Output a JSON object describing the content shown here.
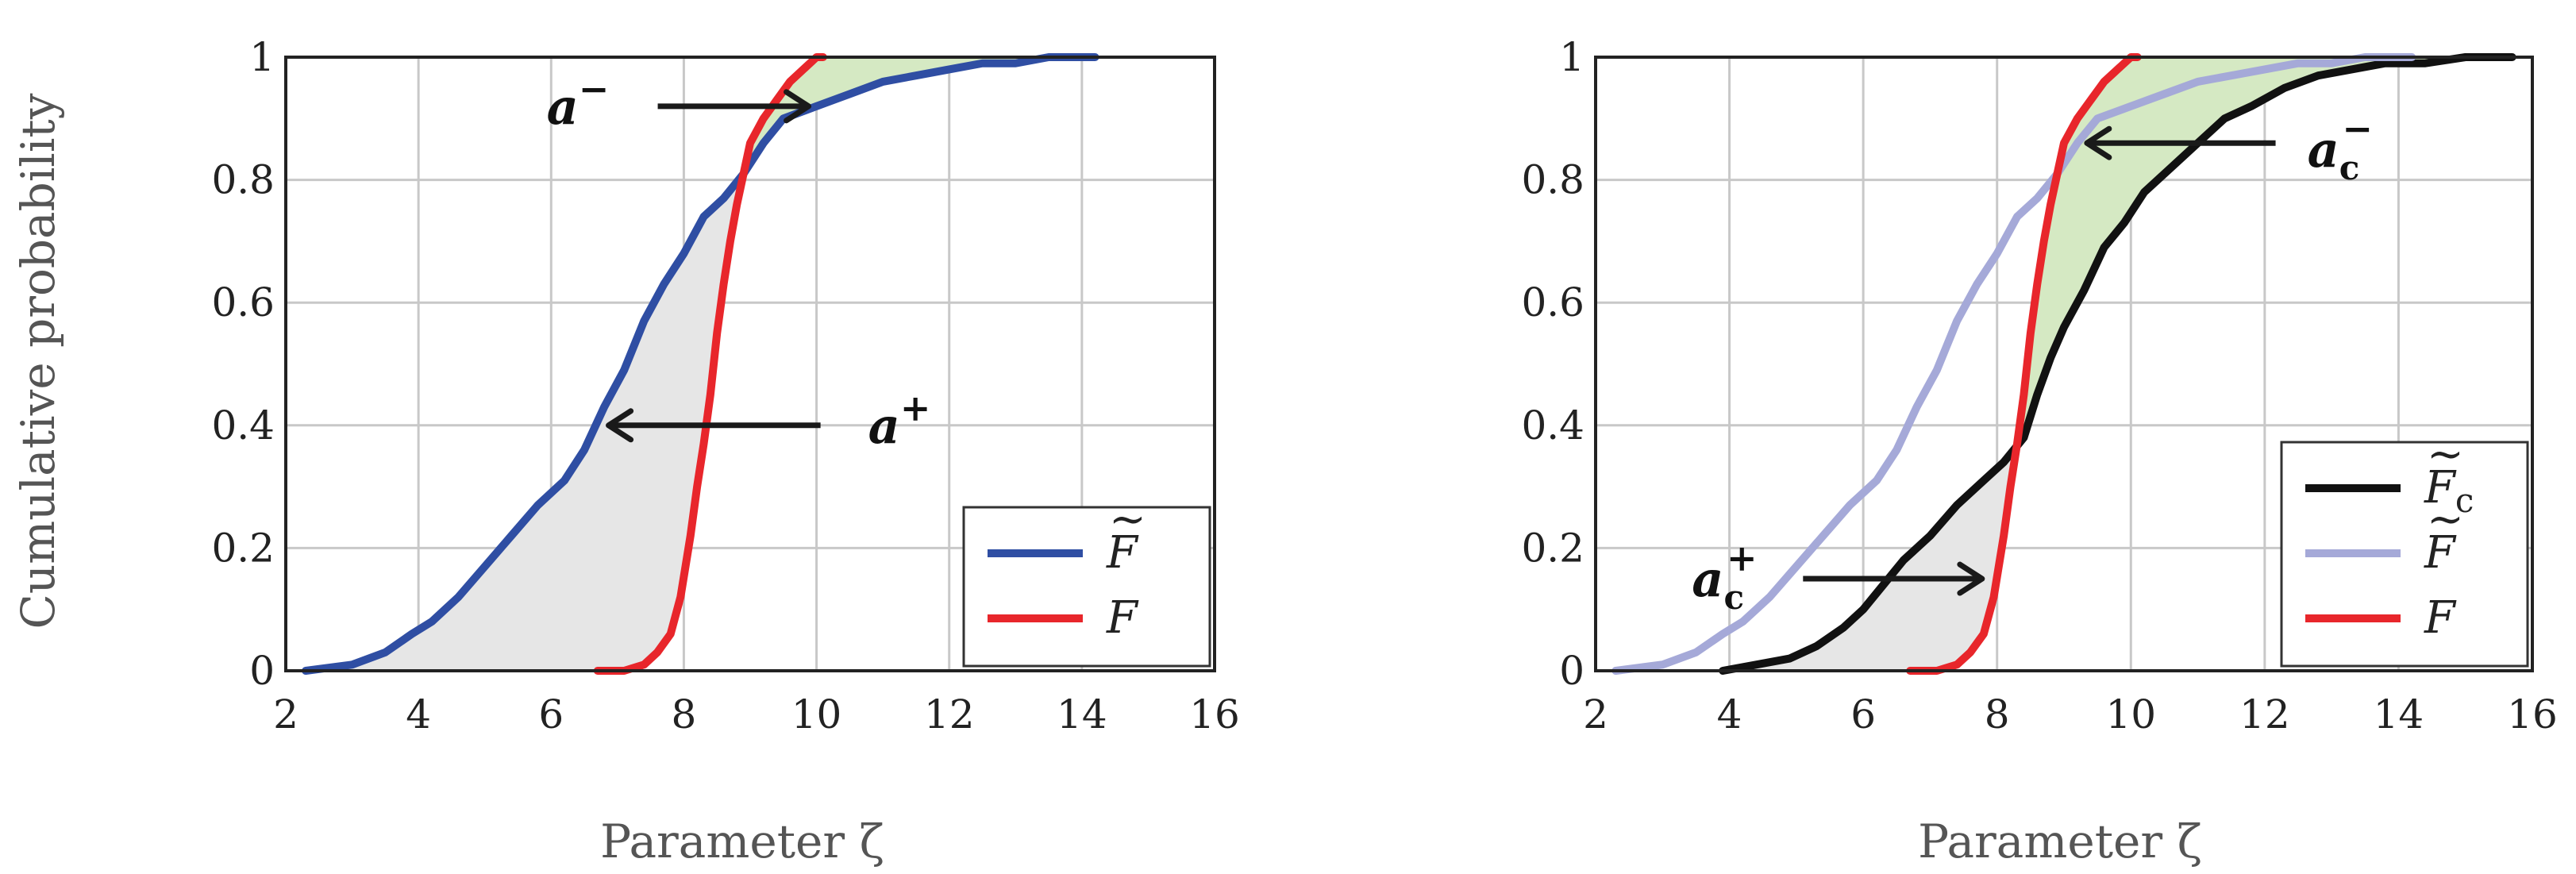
{
  "chart_data": [
    {
      "type": "line",
      "xlabel": "Parameter ζ",
      "ylabel": "Cumulative probability",
      "xlim": [
        2,
        16
      ],
      "ylim": [
        0,
        1
      ],
      "grid": true,
      "xticks": [
        "2",
        "4",
        "6",
        "8",
        "10",
        "12",
        "14",
        "16"
      ],
      "yticks": [
        "0",
        "0.2",
        "0.4",
        "0.6",
        "0.8",
        "1"
      ],
      "legend_position": "bottom-right",
      "series": [
        {
          "name": "F̃",
          "color": "#2f4ea3",
          "x": [
            2.3,
            3.0,
            3.5,
            3.9,
            4.2,
            4.6,
            5.0,
            5.4,
            5.8,
            6.2,
            6.5,
            6.8,
            7.1,
            7.4,
            7.7,
            8.0,
            8.3,
            8.6,
            8.9,
            9.2,
            9.5,
            10.0,
            10.5,
            11.0,
            11.5,
            12.0,
            12.5,
            13.0,
            13.5,
            14.2
          ],
          "y": [
            0.0,
            0.01,
            0.03,
            0.06,
            0.08,
            0.12,
            0.17,
            0.22,
            0.27,
            0.31,
            0.36,
            0.43,
            0.49,
            0.57,
            0.63,
            0.68,
            0.74,
            0.77,
            0.81,
            0.86,
            0.9,
            0.92,
            0.94,
            0.96,
            0.97,
            0.98,
            0.99,
            0.99,
            1.0,
            1.0
          ]
        },
        {
          "name": "F",
          "color": "#e8262b",
          "x": [
            6.7,
            7.1,
            7.4,
            7.6,
            7.8,
            7.95,
            8.1,
            8.2,
            8.3,
            8.4,
            8.5,
            8.6,
            8.7,
            8.8,
            8.9,
            9.0,
            9.2,
            9.4,
            9.6,
            9.8,
            10.0,
            10.1
          ],
          "y": [
            0.0,
            0.0,
            0.01,
            0.03,
            0.06,
            0.12,
            0.22,
            0.3,
            0.37,
            0.45,
            0.55,
            0.63,
            0.7,
            0.76,
            0.81,
            0.86,
            0.9,
            0.93,
            0.96,
            0.98,
            1.0,
            1.0
          ]
        }
      ],
      "annotations": [
        {
          "label": "a",
          "sup": "−",
          "x": 10.3,
          "y": 0.92
        },
        {
          "label": "a",
          "sup": "+",
          "x": 10.3,
          "y": 0.4
        }
      ]
    },
    {
      "type": "line",
      "xlabel": "Parameter ζ",
      "ylabel": "",
      "xlim": [
        2,
        16
      ],
      "ylim": [
        0,
        1
      ],
      "grid": true,
      "xticks": [
        "2",
        "4",
        "6",
        "8",
        "10",
        "12",
        "14",
        "16"
      ],
      "yticks": [
        "0",
        "0.2",
        "0.4",
        "0.6",
        "0.8",
        "1"
      ],
      "legend_position": "bottom-right",
      "series": [
        {
          "name": "F̃c",
          "color": "#111111",
          "x": [
            3.9,
            4.4,
            4.9,
            5.3,
            5.7,
            6.0,
            6.3,
            6.6,
            7.0,
            7.4,
            7.8,
            8.1,
            8.4,
            8.6,
            8.8,
            9.0,
            9.3,
            9.6,
            9.9,
            10.2,
            10.6,
            11.0,
            11.4,
            11.8,
            12.3,
            12.8,
            13.3,
            13.8,
            14.4,
            15.0,
            15.7
          ],
          "y": [
            0.0,
            0.01,
            0.02,
            0.04,
            0.07,
            0.1,
            0.14,
            0.18,
            0.22,
            0.27,
            0.31,
            0.34,
            0.38,
            0.45,
            0.51,
            0.56,
            0.62,
            0.69,
            0.73,
            0.78,
            0.82,
            0.86,
            0.9,
            0.92,
            0.95,
            0.97,
            0.98,
            0.99,
            0.99,
            1.0,
            1.0
          ]
        },
        {
          "name": "F̃",
          "color": "#a5a9d8",
          "x": [
            2.3,
            3.0,
            3.5,
            3.9,
            4.2,
            4.6,
            5.0,
            5.4,
            5.8,
            6.2,
            6.5,
            6.8,
            7.1,
            7.4,
            7.7,
            8.0,
            8.3,
            8.6,
            8.9,
            9.2,
            9.5,
            10.0,
            10.5,
            11.0,
            11.5,
            12.0,
            12.5,
            13.0,
            13.5,
            14.2
          ],
          "y": [
            0.0,
            0.01,
            0.03,
            0.06,
            0.08,
            0.12,
            0.17,
            0.22,
            0.27,
            0.31,
            0.36,
            0.43,
            0.49,
            0.57,
            0.63,
            0.68,
            0.74,
            0.77,
            0.81,
            0.86,
            0.9,
            0.92,
            0.94,
            0.96,
            0.97,
            0.98,
            0.99,
            0.99,
            1.0,
            1.0
          ]
        },
        {
          "name": "F",
          "color": "#e8262b",
          "x": [
            6.7,
            7.1,
            7.4,
            7.6,
            7.8,
            7.95,
            8.1,
            8.2,
            8.3,
            8.4,
            8.5,
            8.6,
            8.7,
            8.8,
            8.9,
            9.0,
            9.2,
            9.4,
            9.6,
            9.8,
            10.0,
            10.1
          ],
          "y": [
            0.0,
            0.0,
            0.01,
            0.03,
            0.06,
            0.12,
            0.22,
            0.3,
            0.37,
            0.45,
            0.55,
            0.63,
            0.7,
            0.76,
            0.81,
            0.86,
            0.9,
            0.93,
            0.96,
            0.98,
            1.0,
            1.0
          ]
        }
      ],
      "annotations": [
        {
          "label": "a",
          "sub": "c",
          "sup": "−",
          "x": 12.4,
          "y": 0.86
        },
        {
          "label": "a",
          "sub": "c",
          "sup": "+",
          "x": 5.1,
          "y": 0.15
        }
      ]
    }
  ],
  "colors": {
    "grid": "#c8c8c8",
    "fill_below": "#e6e6e6",
    "fill_above": "#d5e9c3",
    "arrow": "#1a1a1a"
  }
}
